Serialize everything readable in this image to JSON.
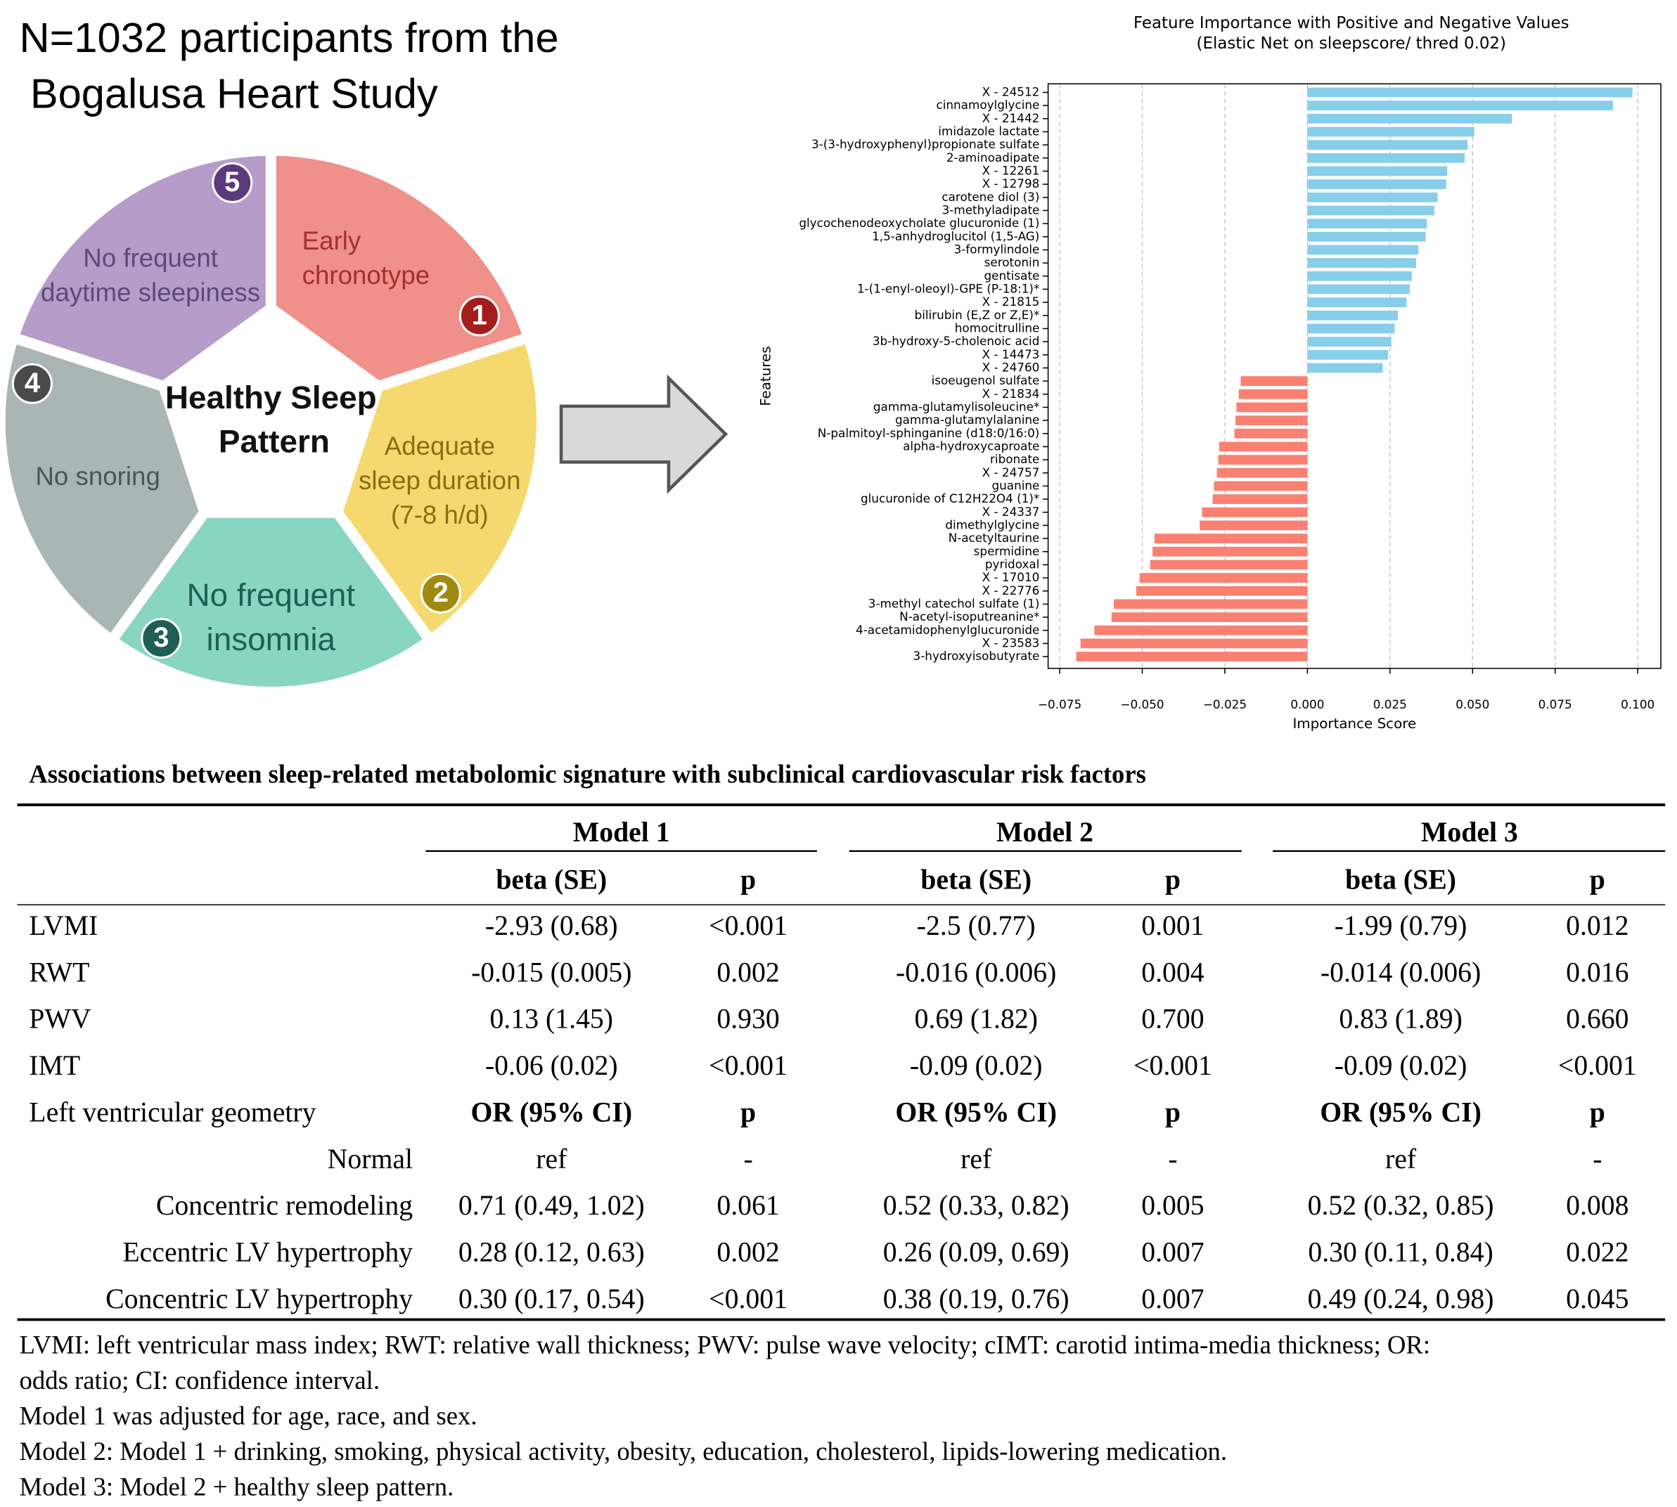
{
  "header": {
    "lines": [
      "N=1032 participants from the",
      "Bogalusa Heart Study"
    ]
  },
  "diagram": {
    "center_label": [
      "Healthy Sleep",
      "Pattern"
    ],
    "segments": [
      {
        "number": 1,
        "lines": [
          "Early",
          "chronotype"
        ],
        "color": "#f0908a"
      },
      {
        "number": 2,
        "lines": [
          "Adequate",
          "sleep duration",
          "(7-8 h/d)"
        ],
        "color": "#f5d96e"
      },
      {
        "number": 3,
        "lines": [
          "No frequent",
          "insomnia"
        ],
        "color": "#88d5c2"
      },
      {
        "number": 4,
        "lines": [
          "No snoring"
        ],
        "color": "#a9b6b4"
      },
      {
        "number": 5,
        "lines": [
          "No frequent",
          "daytime sleepiness"
        ],
        "color": "#b69cc9"
      }
    ]
  },
  "chart_data": {
    "type": "barh",
    "title": "Feature Importance with Positive and Negative Values",
    "subtitle": "(Elastic Net on sleepscore/ thred 0.02)",
    "xlabel": "Importance Score",
    "ylabel": "Features",
    "categories": [
      "X - 24512",
      "cinnamoylglycine",
      "X - 21442",
      "imidazole lactate",
      "3-(3-hydroxyphenyl)propionate sulfate",
      "2-aminoadipate",
      "X - 12261",
      "X - 12798",
      "carotene diol (3)",
      "3-methyladipate",
      "glycochenodeoxycholate glucuronide (1)",
      "1,5-anhydroglucitol (1,5-AG)",
      "3-formylindole",
      "serotonin",
      "gentisate",
      "1-(1-enyl-oleoyl)-GPE (P-18:1)*",
      "X - 21815",
      "bilirubin (E,Z or Z,E)*",
      "homocitrulline",
      "3b-hydroxy-5-cholenoic acid",
      "X - 14473",
      "X - 24760",
      "isoeugenol sulfate",
      "X - 21834",
      "gamma-glutamylisoleucine*",
      "gamma-glutamylalanine",
      "N-palmitoyl-sphinganine (d18:0/16:0)",
      "alpha-hydroxycaproate",
      "ribonate",
      "X - 24757",
      "guanine",
      "glucuronide of C12H22O4 (1)*",
      "X - 24337",
      "dimethylglycine",
      "N-acetyltaurine",
      "spermidine",
      "pyridoxal",
      "X - 17010",
      "X - 22776",
      "3-methyl catechol sulfate (1)",
      "N-acetyl-isoputreanine*",
      "4-acetamidophenylglucuronide",
      "X - 23583",
      "3-hydroxyisobutyrate"
    ],
    "values": [
      0.0984,
      0.0925,
      0.0619,
      0.0505,
      0.0485,
      0.0476,
      0.0423,
      0.042,
      0.0394,
      0.0384,
      0.0362,
      0.0358,
      0.0336,
      0.0329,
      0.0316,
      0.031,
      0.03,
      0.0274,
      0.0264,
      0.0254,
      0.0244,
      0.0228,
      -0.0202,
      -0.0208,
      -0.0215,
      -0.0218,
      -0.0221,
      -0.0267,
      -0.027,
      -0.0274,
      -0.0283,
      -0.0287,
      -0.0319,
      -0.0326,
      -0.0463,
      -0.0469,
      -0.0476,
      -0.0508,
      -0.0518,
      -0.0586,
      -0.0593,
      -0.0645,
      -0.0687,
      -0.07
    ],
    "colors": {
      "positive": "#87ceeb",
      "negative": "#fa8072"
    },
    "xlim": [
      -0.0785,
      0.107
    ],
    "xticks": [
      {
        "value": -0.075,
        "label": "−0.075"
      },
      {
        "value": -0.05,
        "label": "−0.050"
      },
      {
        "value": -0.025,
        "label": "−0.025"
      },
      {
        "value": 0,
        "label": "0.000"
      },
      {
        "value": 0.025,
        "label": "0.025"
      },
      {
        "value": 0.05,
        "label": "0.050"
      },
      {
        "value": 0.075,
        "label": "0.075"
      },
      {
        "value": 0.1,
        "label": "0.100"
      }
    ],
    "grid": true
  },
  "table": {
    "title": "Associations between sleep-related metabolomic signature with subclinical cardiovascular risk factors",
    "column_groups": [
      "Model 1",
      "Model 2",
      "Model 3"
    ],
    "header_row": [
      "beta (SE)",
      "p",
      "beta (SE)",
      "p",
      "beta (SE)",
      "p"
    ],
    "rows": [
      [
        "LVMI",
        "-2.93 (0.68)",
        "<0.001",
        "-2.5 (0.77)",
        "0.001",
        "-1.99 (0.79)",
        "0.012"
      ],
      [
        "RWT",
        "-0.015 (0.005)",
        "0.002",
        "-0.016 (0.006)",
        "0.004",
        "-0.014 (0.006)",
        "0.016"
      ],
      [
        "PWV",
        "0.13 (1.45)",
        "0.930",
        "0.69 (1.82)",
        "0.700",
        "0.83 (1.89)",
        "0.660"
      ],
      [
        "IMT",
        "-0.06 (0.02)",
        "<0.001",
        "-0.09 (0.02)",
        "<0.001",
        "-0.09 (0.02)",
        "<0.001"
      ],
      [
        "Left ventricular geometry",
        "OR (95% CI)",
        "p",
        "OR (95% CI)",
        "p",
        "OR (95% CI)",
        "p"
      ],
      [
        "Normal",
        "ref",
        "-",
        "ref",
        "-",
        "ref",
        "-"
      ],
      [
        "Concentric remodeling",
        "0.71 (0.49, 1.02)",
        "0.061",
        "0.52 (0.33, 0.82)",
        "0.005",
        "0.52 (0.32, 0.85)",
        "0.008"
      ],
      [
        "Eccentric LV hypertrophy",
        "0.28 (0.12, 0.63)",
        "0.002",
        "0.26 (0.09, 0.69)",
        "0.007",
        "0.30 (0.11, 0.84)",
        "0.022"
      ],
      [
        "Concentric LV hypertrophy",
        "0.30 (0.17, 0.54)",
        "<0.001",
        "0.38 (0.19, 0.76)",
        "0.007",
        "0.49 (0.24, 0.98)",
        "0.045"
      ]
    ],
    "notes": [
      "LVMI: left ventricular mass index; RWT: relative wall thickness; PWV: pulse wave velocity; cIMT: carotid intima-media thickness; OR:",
      "odds ratio; CI: confidence interval.",
      "Model 1 was adjusted for age, race, and sex.",
      "Model 2: Model 1 + drinking, smoking, physical activity, obesity, education, cholesterol, lipids-lowering medication.",
      "Model 3: Model 2 + healthy sleep pattern."
    ]
  }
}
